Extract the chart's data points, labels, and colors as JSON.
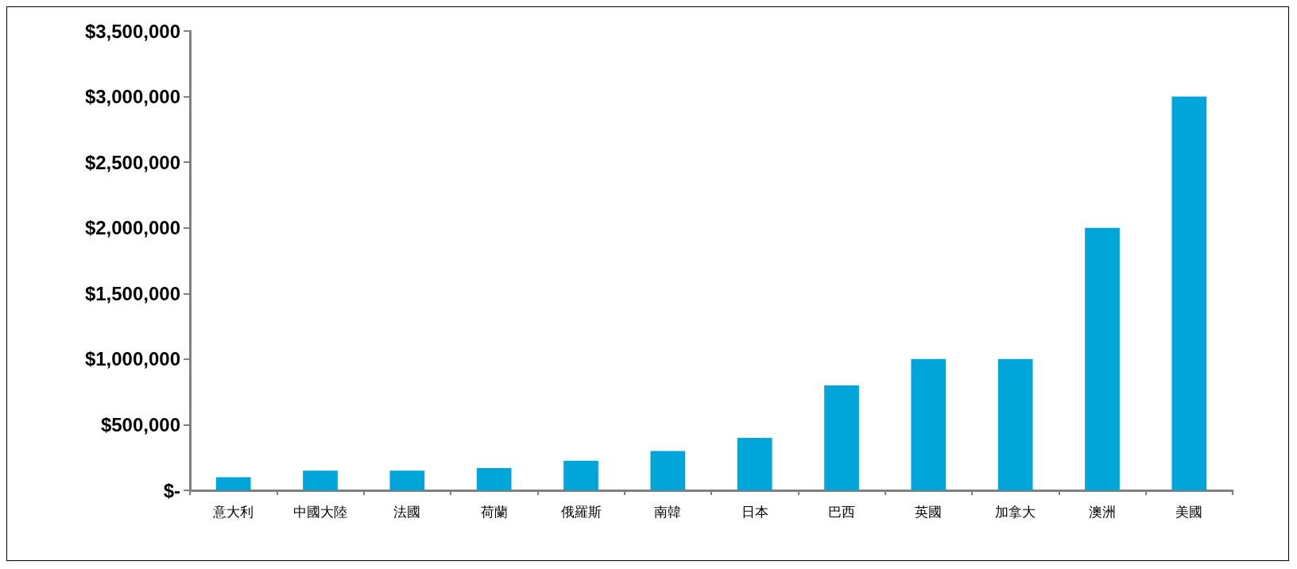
{
  "chart_data": {
    "type": "bar",
    "categories": [
      "意大利",
      "中國大陸",
      "法國",
      "荷蘭",
      "俄羅斯",
      "南韓",
      "日本",
      "巴西",
      "英國",
      "加拿大",
      "澳洲",
      "美國"
    ],
    "values": [
      100000,
      150000,
      150000,
      170000,
      225000,
      300000,
      400000,
      800000,
      1000000,
      1000000,
      2000000,
      3000000
    ],
    "color": "#00a6d9",
    "ylim": [
      0,
      3500000
    ],
    "yticks": [
      {
        "value": 0,
        "label": "$-"
      },
      {
        "value": 500000,
        "label": "$500,000"
      },
      {
        "value": 1000000,
        "label": "$1,000,000"
      },
      {
        "value": 1500000,
        "label": "$1,500,000"
      },
      {
        "value": 2000000,
        "label": "$2,000,000"
      },
      {
        "value": 2500000,
        "label": "$2,500,000"
      },
      {
        "value": 3000000,
        "label": "$3,000,000"
      },
      {
        "value": 3500000,
        "label": "$3,500,000"
      }
    ],
    "grid": false
  }
}
